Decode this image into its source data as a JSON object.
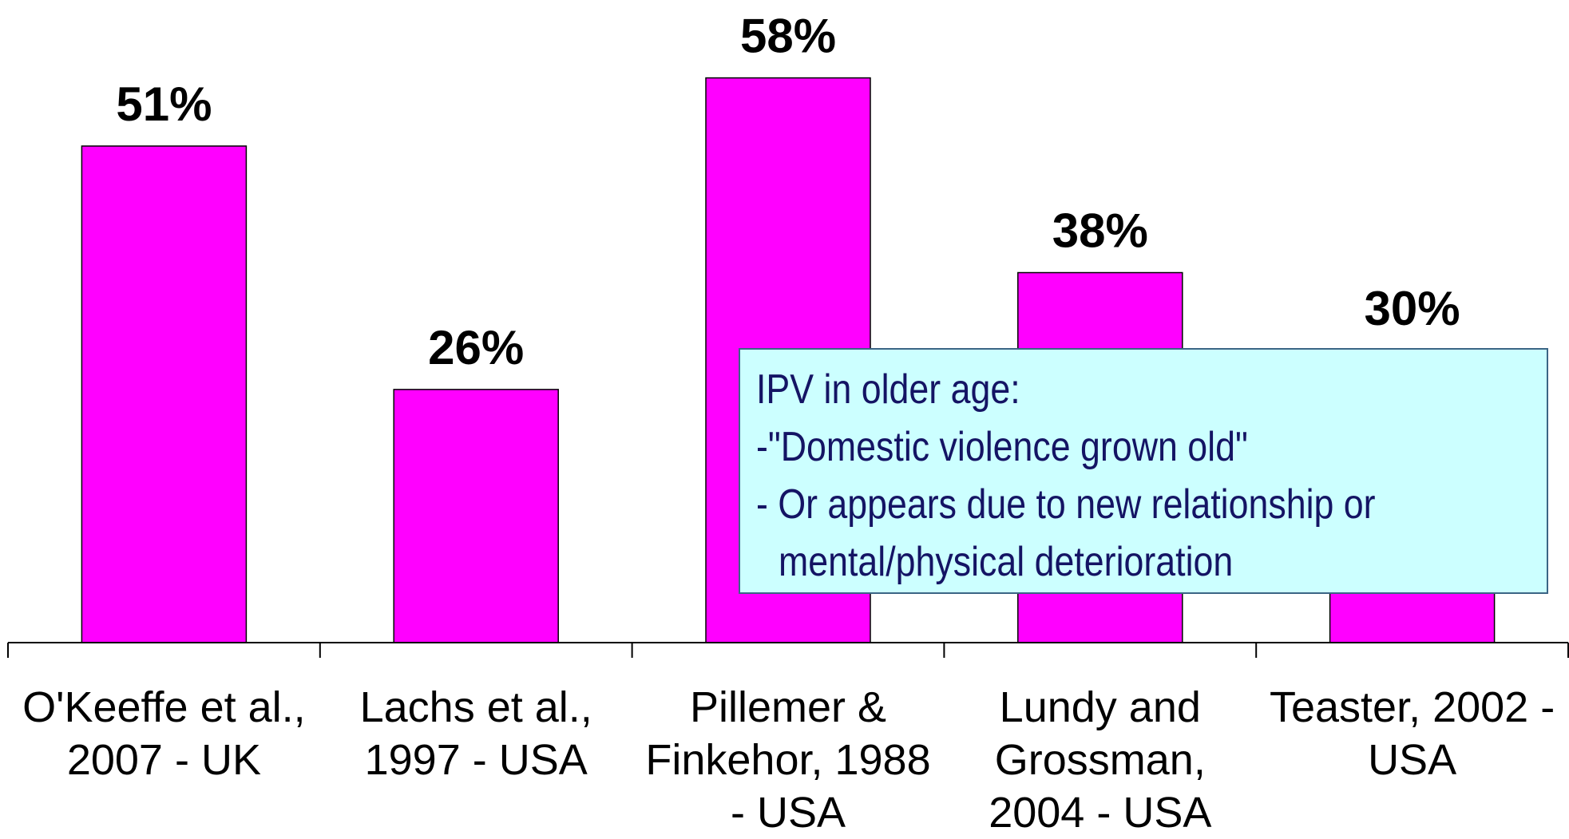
{
  "chart_data": {
    "type": "bar",
    "categories": [
      "O'Keeffe et al., 2007 - UK",
      "Lachs et al., 1997 - USA",
      "Pillemer & Finkehor, 1988 - USA",
      "Lundy and Grossman, 2004 - USA",
      "Teaster, 2002 - USA"
    ],
    "values": [
      51,
      26,
      58,
      38,
      30
    ],
    "value_labels": [
      "51%",
      "26%",
      "58%",
      "38%",
      "30%"
    ],
    "color": "#ff00ff",
    "ylim": [
      0,
      66
    ],
    "annotation": {
      "lines": [
        "IPV in older age:",
        "-\"Domestic violence grown old\"",
        "- Or appears due to new relationship or",
        "mental/physical deterioration"
      ]
    }
  }
}
